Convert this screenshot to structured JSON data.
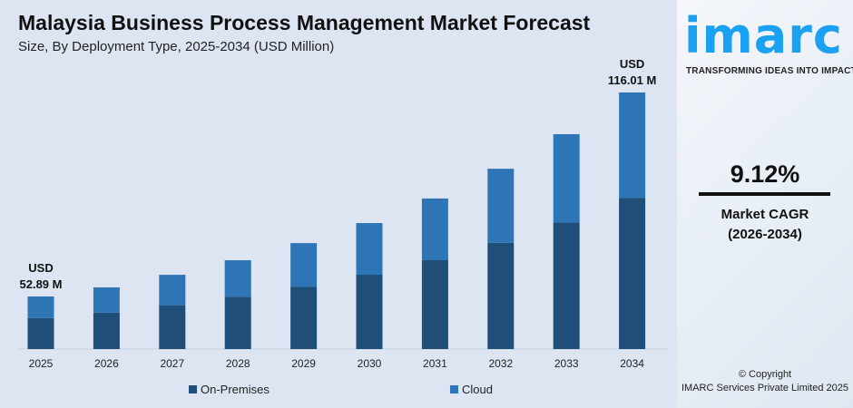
{
  "chart_data": {
    "type": "bar",
    "stacked": true,
    "title": "Malaysia Business Process Management Market Forecast",
    "subtitle": "Size, By Deployment Type, 2025-2034 (USD Million)",
    "categories": [
      "2025",
      "2026",
      "2027",
      "2028",
      "2029",
      "2030",
      "2031",
      "2032",
      "2033",
      "2034"
    ],
    "series": [
      {
        "name": "On-Premises",
        "color": "#1f4e79",
        "values": [
          31.2,
          32.9,
          35.2,
          37.8,
          40.9,
          44.6,
          49.1,
          54.5,
          60.8,
          68.4
        ]
      },
      {
        "name": "Cloud",
        "color": "#2e75b6",
        "values": [
          21.69,
          22.8,
          24.4,
          26.3,
          28.5,
          31.0,
          34.1,
          37.9,
          42.3,
          47.61
        ]
      }
    ],
    "annotations": [
      {
        "category": "2025",
        "line1": "USD",
        "line2": "52.89 M"
      },
      {
        "category": "2034",
        "line1": "USD",
        "line2": "116.01 M"
      }
    ],
    "legend_position": "bottom",
    "grid": false
  },
  "brand": {
    "logo": "imarc",
    "tagline": "TRANSFORMING IDEAS INTO IMPACT",
    "color": "#1ba1f2"
  },
  "cagr": {
    "value": "9.12%",
    "label": "Market CAGR",
    "period": "(2026-2034)"
  },
  "footer": {
    "copyright": "© Copyright",
    "company": "IMARC Services Private Limited 2025"
  }
}
